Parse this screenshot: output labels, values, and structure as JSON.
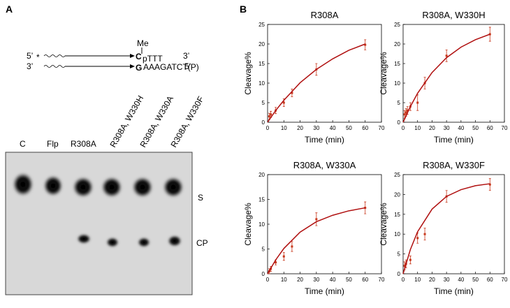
{
  "panel_a": {
    "label": "A",
    "schematic": {
      "methyl": "Me",
      "top_5": "5’",
      "star": "*",
      "top_base": "C",
      "top_seq": "pTTT",
      "top_3": "3’",
      "bottom_3": "3’",
      "bottom_base": "G",
      "bottom_seq": "AAAGATCT(P)",
      "bottom_5": "5’"
    },
    "lanes": [
      "C",
      "Flp",
      "R308A",
      "R308A, W330H",
      "R308A, W330A",
      "R308A, W330F"
    ],
    "bands": [
      "S",
      "CP"
    ]
  },
  "panel_b": {
    "label": "B"
  },
  "chart_data": [
    {
      "type": "scatter",
      "title": "R308A",
      "xlabel": "Time (min)",
      "ylabel": "Cleavage%",
      "xlim": [
        0,
        70
      ],
      "ylim": [
        0,
        25
      ],
      "xticks": [
        0,
        10,
        20,
        30,
        40,
        50,
        60,
        70
      ],
      "yticks": [
        0,
        5,
        10,
        15,
        20,
        25
      ],
      "series": [
        {
          "mode": "markers",
          "color": "#c8391e",
          "x": [
            1,
            2,
            5,
            10,
            15,
            30,
            60
          ],
          "values": [
            1.5,
            2,
            3,
            5,
            7.5,
            13.5,
            19.8
          ],
          "errors": [
            0.8,
            0.8,
            0.8,
            1,
            1,
            1.5,
            1.3
          ]
        },
        {
          "mode": "line",
          "color": "#b01010",
          "x": [
            0,
            5,
            10,
            20,
            30,
            40,
            50,
            60
          ],
          "values": [
            0,
            3,
            5.6,
            10.1,
            13.5,
            16.2,
            18.4,
            20
          ]
        }
      ]
    },
    {
      "type": "scatter",
      "title": "R308A, W330H",
      "xlabel": "Time (min)",
      "ylabel": "Cleavage%",
      "xlim": [
        0,
        70
      ],
      "ylim": [
        0,
        25
      ],
      "xticks": [
        0,
        10,
        20,
        30,
        40,
        50,
        60,
        70
      ],
      "yticks": [
        0,
        5,
        10,
        15,
        20,
        25
      ],
      "series": [
        {
          "mode": "markers",
          "color": "#c8391e",
          "x": [
            1,
            2,
            3,
            5,
            10,
            15,
            30,
            60
          ],
          "values": [
            2,
            2.5,
            3,
            4,
            5,
            10,
            17,
            22.5
          ],
          "errors": [
            1,
            1,
            1,
            1,
            2,
            1.5,
            1.5,
            1.8
          ]
        },
        {
          "mode": "line",
          "color": "#b01010",
          "x": [
            0,
            5,
            10,
            20,
            30,
            40,
            50,
            60
          ],
          "values": [
            0,
            4,
            7.4,
            12.7,
            16.5,
            19.2,
            21.1,
            22.5
          ]
        }
      ]
    },
    {
      "type": "scatter",
      "title": "R308A, W330A",
      "xlabel": "Time (min)",
      "ylabel": "Cleavage%",
      "xlim": [
        0,
        70
      ],
      "ylim": [
        0,
        20
      ],
      "xticks": [
        0,
        10,
        20,
        30,
        40,
        50,
        60,
        70
      ],
      "yticks": [
        0,
        5,
        10,
        15,
        20
      ],
      "series": [
        {
          "mode": "markers",
          "color": "#c8391e",
          "x": [
            1,
            2,
            5,
            10,
            15,
            30,
            60
          ],
          "values": [
            0.5,
            1,
            2.3,
            3.5,
            5.5,
            11,
            13.3
          ],
          "errors": [
            0.5,
            0.5,
            0.5,
            0.8,
            1,
            1.3,
            1.2
          ]
        },
        {
          "mode": "line",
          "color": "#b01010",
          "x": [
            0,
            5,
            10,
            20,
            30,
            40,
            50,
            60
          ],
          "values": [
            0,
            2.8,
            5.1,
            8.4,
            10.5,
            11.8,
            12.7,
            13.3
          ]
        }
      ]
    },
    {
      "type": "scatter",
      "title": "R308A, W330F",
      "xlabel": "Time (min)",
      "ylabel": "Cleavage%",
      "xlim": [
        0,
        70
      ],
      "ylim": [
        0,
        25
      ],
      "xticks": [
        0,
        10,
        20,
        30,
        40,
        50,
        60,
        70
      ],
      "yticks": [
        0,
        5,
        10,
        15,
        20,
        25
      ],
      "series": [
        {
          "mode": "markers",
          "color": "#c8391e",
          "x": [
            1,
            2,
            5,
            10,
            15,
            30,
            60
          ],
          "values": [
            2,
            2.5,
            3.5,
            9,
            10,
            19.5,
            22.5
          ],
          "errors": [
            1,
            1,
            1,
            1.3,
            1.5,
            1.5,
            1.5
          ]
        },
        {
          "mode": "line",
          "color": "#b01010",
          "x": [
            0,
            5,
            10,
            20,
            30,
            40,
            50,
            60
          ],
          "values": [
            0,
            6.1,
            10.6,
            16.3,
            19.5,
            21.2,
            22.2,
            22.7
          ]
        }
      ]
    }
  ]
}
